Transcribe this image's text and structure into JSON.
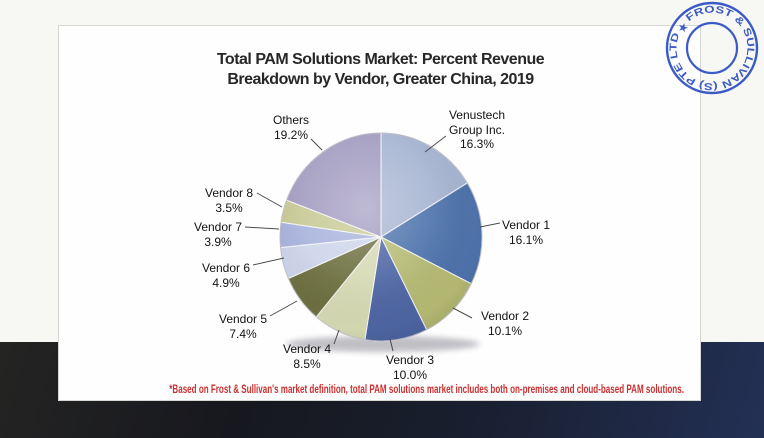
{
  "card": {
    "title_line1": "Total PAM Solutions Market: Percent Revenue",
    "title_line2": "Breakdown by Vendor, Greater China, 2019",
    "footnote": "*Based on Frost & Sullivan's market definition, total PAM solutions market includes both on-premises and cloud-based PAM solutions.",
    "footnote_color": "#cb3030"
  },
  "stamp": {
    "arc_text": "FROST & SULLIVAN (S) PTE LTD",
    "star": "★",
    "ink_color": "#2e4fc2"
  },
  "chart_data": {
    "type": "pie",
    "title": "Total PAM Solutions Market: Percent Revenue Breakdown by Vendor, Greater China, 2019",
    "unit": "%",
    "start_angle": "12 o'clock",
    "direction": "clockwise",
    "slices": [
      {
        "label": "Venustech Group Inc.",
        "value": 16.3,
        "display": "16.3%",
        "color": "#a7b5d2"
      },
      {
        "label": "Vendor 1",
        "value": 16.1,
        "display": "16.1%",
        "color": "#4e73ac"
      },
      {
        "label": "Vendor 2",
        "value": 10.1,
        "display": "10.1%",
        "color": "#b5ba73"
      },
      {
        "label": "Vendor 3",
        "value": 10.0,
        "display": "10.0%",
        "color": "#4e66a4"
      },
      {
        "label": "Vendor 4",
        "value": 8.5,
        "display": "8.5%",
        "color": "#d6dab3"
      },
      {
        "label": "Vendor 5",
        "value": 7.4,
        "display": "7.4%",
        "color": "#6d7040"
      },
      {
        "label": "Vendor 6",
        "value": 4.9,
        "display": "4.9%",
        "color": "#cdd5eb"
      },
      {
        "label": "Vendor 7",
        "value": 3.9,
        "display": "3.9%",
        "color": "#a8b3dc"
      },
      {
        "label": "Vendor 8",
        "value": 3.5,
        "display": "3.5%",
        "color": "#c6c993"
      },
      {
        "label": "Others",
        "value": 19.2,
        "display": "19.2%",
        "color": "#a29bc0"
      }
    ]
  }
}
